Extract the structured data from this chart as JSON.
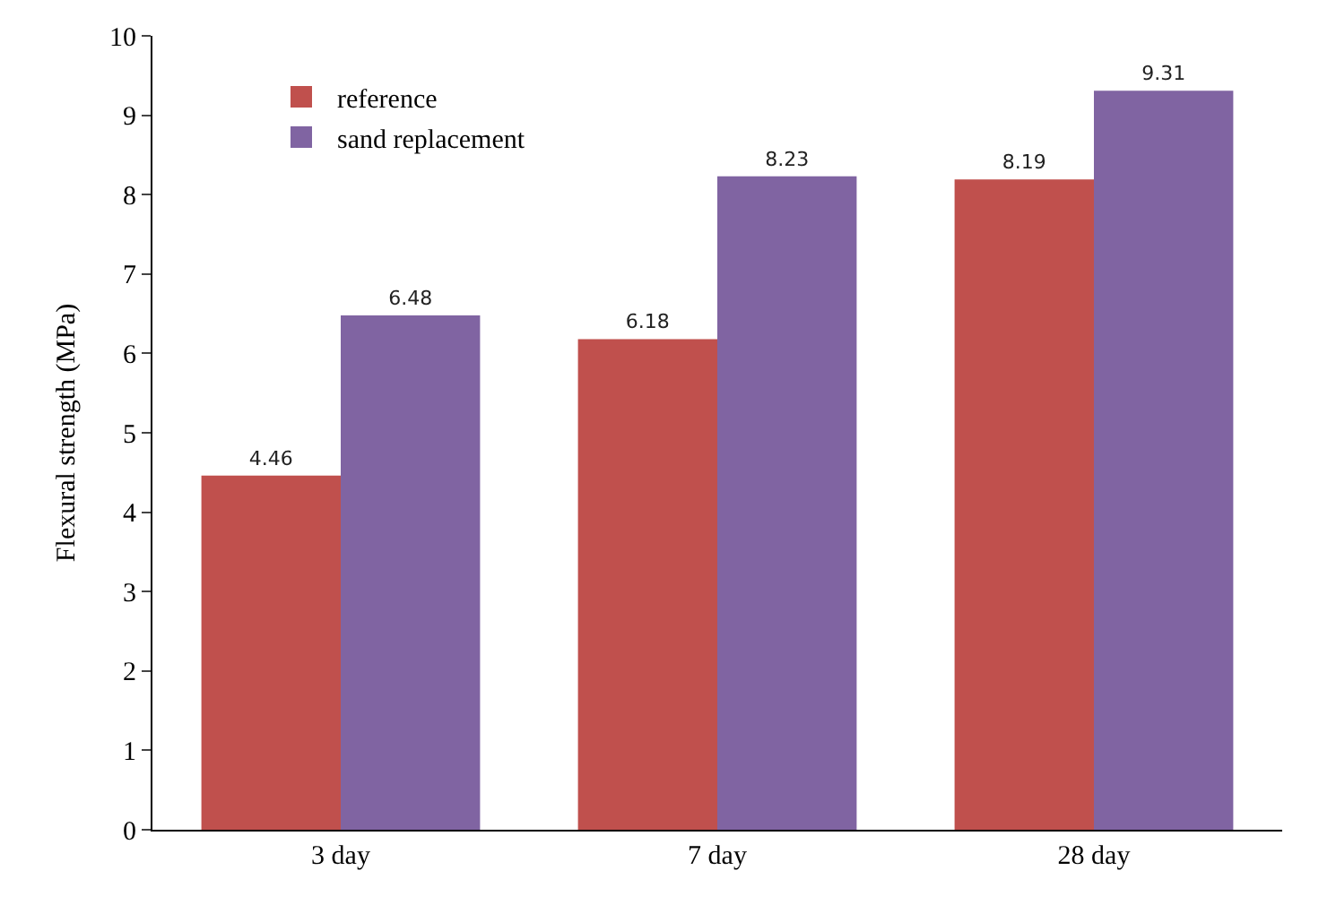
{
  "chart_data": {
    "type": "bar",
    "ylabel": "Flexural strength (MPa)",
    "categories": [
      "3 day",
      "7 day",
      "28 day"
    ],
    "series": [
      {
        "name": "reference",
        "color": "#c0504d",
        "values": [
          4.46,
          6.18,
          8.19
        ]
      },
      {
        "name": "sand replacement",
        "color": "#8064a2",
        "values": [
          6.48,
          8.23,
          9.31
        ]
      }
    ],
    "ylim": [
      0,
      10
    ],
    "yticks": [
      0,
      1,
      2,
      3,
      4,
      5,
      6,
      7,
      8,
      9,
      10
    ],
    "legend": "top left",
    "data_labels": true
  }
}
